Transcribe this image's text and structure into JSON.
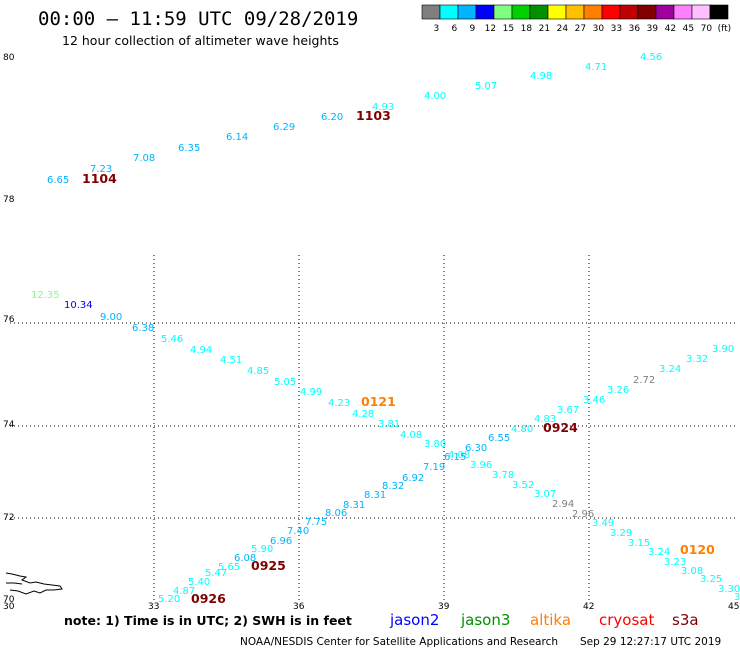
{
  "header": {
    "title": "00:00 – 11:59 UTC 09/28/2019",
    "subtitle": "12 hour collection of altimeter wave heights"
  },
  "colorbar": {
    "colors": [
      "#7f7f7f",
      "#00ffff",
      "#00b4ff",
      "#0000ff",
      "#7fff7f",
      "#00d000",
      "#009000",
      "#ffff00",
      "#ffc000",
      "#ff8000",
      "#ff0000",
      "#c00000",
      "#800000",
      "#a000a0",
      "#ff80ff",
      "#ffc0ff",
      "#000000"
    ],
    "labels": [
      "3",
      "6",
      "9",
      "12",
      "15",
      "18",
      "21",
      "24",
      "27",
      "30",
      "33",
      "36",
      "39",
      "42",
      "45",
      "70",
      "(ft)"
    ]
  },
  "axes": {
    "lat_labels": [
      "80",
      "78",
      "76",
      "74",
      "72",
      "70"
    ],
    "lon_labels": [
      "30",
      "33",
      "36",
      "39",
      "42",
      "45"
    ]
  },
  "passes": [
    {
      "label": "1104",
      "color": "#800000"
    },
    {
      "label": "1103",
      "color": "#800000"
    },
    {
      "label": "0121",
      "color": "#ff8000"
    },
    {
      "label": "0924",
      "color": "#800000"
    },
    {
      "label": "0925",
      "color": "#800000"
    },
    {
      "label": "0926",
      "color": "#800000"
    },
    {
      "label": "0120",
      "color": "#ff8000"
    }
  ],
  "values": [
    {
      "t": "6.65",
      "c": "#00b4ff"
    },
    {
      "t": "7.23",
      "c": "#00b4ff"
    },
    {
      "t": "7.08",
      "c": "#00b4ff"
    },
    {
      "t": "6.35",
      "c": "#00b4ff"
    },
    {
      "t": "6.14",
      "c": "#00b4ff"
    },
    {
      "t": "6.29",
      "c": "#00b4ff"
    },
    {
      "t": "6.20",
      "c": "#00b4ff"
    },
    {
      "t": "4.93",
      "c": "#00ffff"
    },
    {
      "t": "4.00",
      "c": "#00ffff"
    },
    {
      "t": "5.07",
      "c": "#00ffff"
    },
    {
      "t": "4.98",
      "c": "#00ffff"
    },
    {
      "t": "4.71",
      "c": "#00ffff"
    },
    {
      "t": "4.56",
      "c": "#00ffff"
    },
    {
      "t": "12.35",
      "c": "#7fff7f"
    },
    {
      "t": "10.34",
      "c": "#0000ff"
    },
    {
      "t": "9.00",
      "c": "#00b4ff"
    },
    {
      "t": "6.38",
      "c": "#00b4ff"
    },
    {
      "t": "5.46",
      "c": "#00ffff"
    },
    {
      "t": "4.94",
      "c": "#00ffff"
    },
    {
      "t": "4.51",
      "c": "#00ffff"
    },
    {
      "t": "4.85",
      "c": "#00ffff"
    },
    {
      "t": "5.05",
      "c": "#00ffff"
    },
    {
      "t": "4.99",
      "c": "#00ffff"
    },
    {
      "t": "4.23",
      "c": "#00ffff"
    },
    {
      "t": "4.28",
      "c": "#00ffff"
    },
    {
      "t": "3.81",
      "c": "#00ffff"
    },
    {
      "t": "4.08",
      "c": "#00ffff"
    },
    {
      "t": "3.80",
      "c": "#00ffff"
    },
    {
      "t": "4.08",
      "c": "#00ffff"
    },
    {
      "t": "3.96",
      "c": "#00ffff"
    },
    {
      "t": "3.78",
      "c": "#00ffff"
    },
    {
      "t": "3.52",
      "c": "#00ffff"
    },
    {
      "t": "3.07",
      "c": "#00ffff"
    },
    {
      "t": "2.94",
      "c": "#7f7f7f"
    },
    {
      "t": "2.96",
      "c": "#7f7f7f"
    },
    {
      "t": "3.49",
      "c": "#00ffff"
    },
    {
      "t": "3.29",
      "c": "#00ffff"
    },
    {
      "t": "3.15",
      "c": "#00ffff"
    },
    {
      "t": "3.24",
      "c": "#00ffff"
    },
    {
      "t": "3.23",
      "c": "#00ffff"
    },
    {
      "t": "3.08",
      "c": "#00ffff"
    },
    {
      "t": "3.25",
      "c": "#00ffff"
    },
    {
      "t": "3.30",
      "c": "#00ffff"
    },
    {
      "t": "3",
      "c": "#00ffff"
    },
    {
      "t": "5.20",
      "c": "#00ffff"
    },
    {
      "t": "4.87",
      "c": "#00ffff"
    },
    {
      "t": "5.40",
      "c": "#00ffff"
    },
    {
      "t": "5.47",
      "c": "#00ffff"
    },
    {
      "t": "5.65",
      "c": "#00ffff"
    },
    {
      "t": "6.08",
      "c": "#00b4ff"
    },
    {
      "t": "5.90",
      "c": "#00ffff"
    },
    {
      "t": "6.96",
      "c": "#00b4ff"
    },
    {
      "t": "7.40",
      "c": "#00b4ff"
    },
    {
      "t": "7.75",
      "c": "#00b4ff"
    },
    {
      "t": "8.06",
      "c": "#00b4ff"
    },
    {
      "t": "8.31",
      "c": "#00b4ff"
    },
    {
      "t": "8.31",
      "c": "#00b4ff"
    },
    {
      "t": "8.32",
      "c": "#00b4ff"
    },
    {
      "t": "6.92",
      "c": "#00b4ff"
    },
    {
      "t": "7.19",
      "c": "#00b4ff"
    },
    {
      "t": "6.15",
      "c": "#00b4ff"
    },
    {
      "t": "6.30",
      "c": "#00b4ff"
    },
    {
      "t": "6.55",
      "c": "#00b4ff"
    },
    {
      "t": "4.80",
      "c": "#00ffff"
    },
    {
      "t": "4.83",
      "c": "#00ffff"
    },
    {
      "t": "3.67",
      "c": "#00ffff"
    },
    {
      "t": "3.46",
      "c": "#00ffff"
    },
    {
      "t": "3.26",
      "c": "#00ffff"
    },
    {
      "t": "2.72",
      "c": "#7f7f7f"
    },
    {
      "t": "3.24",
      "c": "#00ffff"
    },
    {
      "t": "3.32",
      "c": "#00ffff"
    },
    {
      "t": "3.90",
      "c": "#00ffff"
    }
  ],
  "note": {
    "text": "note: 1) Time is in UTC; 2) SWH is in feet",
    "satellites": [
      {
        "name": "jason2",
        "color": "#0000ff"
      },
      {
        "name": "jason3",
        "color": "#009000"
      },
      {
        "name": "altika",
        "color": "#ff8000"
      },
      {
        "name": "cryosat",
        "color": "#ff0000"
      },
      {
        "name": "s3a",
        "color": "#800000"
      }
    ]
  },
  "footer": {
    "credit": "NOAA/NESDIS Center for Satellite Applications and Research",
    "timestamp": "Sep 29 12:27:17 UTC 2019"
  }
}
